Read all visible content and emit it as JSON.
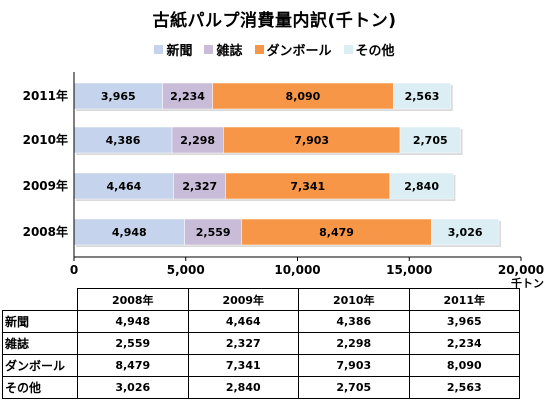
{
  "chart_data": {
    "type": "bar",
    "orientation": "horizontal",
    "stacked": true,
    "title": "古紙パルプ消費量内訳(千トン)",
    "categories": [
      "2011年",
      "2010年",
      "2009年",
      "2008年"
    ],
    "series": [
      {
        "name": "新聞",
        "color": "#c5d3ec",
        "values": [
          3965,
          4386,
          4464,
          4948
        ],
        "labels": [
          "3,965",
          "4,386",
          "4,464",
          "4,948"
        ]
      },
      {
        "name": "雑誌",
        "color": "#c9bcd9",
        "values": [
          2234,
          2298,
          2327,
          2559
        ],
        "labels": [
          "2,234",
          "2,298",
          "2,327",
          "2,559"
        ]
      },
      {
        "name": "ダンボール",
        "color": "#f79646",
        "values": [
          8090,
          7903,
          7341,
          8479
        ],
        "labels": [
          "8,090",
          "7,903",
          "7,341",
          "8,479"
        ]
      },
      {
        "name": "その他",
        "color": "#dbeef3",
        "values": [
          2563,
          2705,
          2840,
          3026
        ],
        "labels": [
          "2,563",
          "2,705",
          "2,840",
          "3,026"
        ]
      }
    ],
    "xlim": [
      0,
      20000
    ],
    "xticks": [
      0,
      5000,
      10000,
      15000,
      20000
    ],
    "xtick_labels": [
      "0",
      "5,000",
      "10,000",
      "15,000",
      "20,000"
    ],
    "x_unit": "千トン",
    "legend_position": "top",
    "grid": false
  },
  "table": {
    "headers": [
      "2008年",
      "2009年",
      "2010年",
      "2011年"
    ],
    "rows": [
      {
        "label": "新聞",
        "values": [
          "4,948",
          "4,464",
          "4,386",
          "3,965"
        ]
      },
      {
        "label": "雑誌",
        "values": [
          "2,559",
          "2,327",
          "2,298",
          "2,234"
        ]
      },
      {
        "label": "ダンボール",
        "values": [
          "8,479",
          "7,341",
          "7,903",
          "8,090"
        ]
      },
      {
        "label": "その他",
        "values": [
          "3,026",
          "2,840",
          "2,705",
          "2,563"
        ]
      }
    ]
  }
}
